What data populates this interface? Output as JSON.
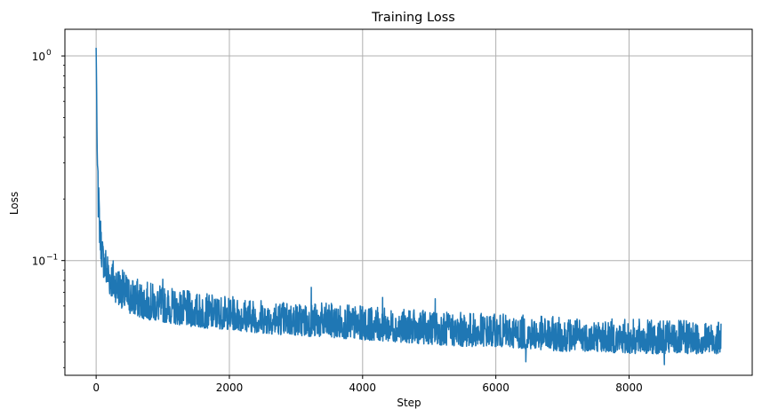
{
  "chart_data": {
    "type": "line",
    "title": "Training Loss",
    "xlabel": "Step",
    "ylabel": "Loss",
    "xlim": [
      -469,
      9849
    ],
    "ylim": [
      0.0275,
      1.35
    ],
    "yscale": "log",
    "grid": true,
    "legend": "none",
    "x_ticks": [
      0,
      2000,
      4000,
      6000,
      8000
    ],
    "x_tick_labels": [
      "0",
      "2000",
      "4000",
      "6000",
      "8000"
    ],
    "y_ticks": [
      1.0,
      0.1
    ],
    "y_tick_labels_base": [
      "10",
      "10"
    ],
    "y_tick_labels_exp": [
      "0",
      "−1"
    ],
    "y_minor_ticks": [
      0.03,
      0.04,
      0.05,
      0.06,
      0.07,
      0.08,
      0.09,
      0.2,
      0.3,
      0.4,
      0.5,
      0.6,
      0.7,
      0.8,
      0.9
    ],
    "series": [
      {
        "color": "#1f77b4",
        "x_max": 9380,
        "band_steps": [
          0,
          5,
          10,
          20,
          40,
          60,
          80,
          100,
          150,
          200,
          300,
          400,
          500,
          700,
          1000,
          1500,
          2000,
          2500,
          3000,
          3500,
          4000,
          4500,
          5000,
          5500,
          6000,
          6500,
          7000,
          7500,
          8000,
          8500,
          9000,
          9380
        ],
        "band_low": [
          1.05,
          0.6,
          0.35,
          0.2,
          0.14,
          0.11,
          0.095,
          0.085,
          0.075,
          0.068,
          0.062,
          0.058,
          0.055,
          0.052,
          0.05,
          0.047,
          0.046,
          0.044,
          0.043,
          0.042,
          0.041,
          0.04,
          0.039,
          0.038,
          0.038,
          0.037,
          0.036,
          0.036,
          0.035,
          0.035,
          0.035,
          0.035
        ],
        "band_high": [
          1.1,
          0.95,
          0.6,
          0.3,
          0.24,
          0.18,
          0.15,
          0.13,
          0.12,
          0.11,
          0.1,
          0.09,
          0.085,
          0.08,
          0.075,
          0.07,
          0.067,
          0.065,
          0.063,
          0.062,
          0.06,
          0.058,
          0.057,
          0.056,
          0.055,
          0.054,
          0.053,
          0.052,
          0.052,
          0.051,
          0.051,
          0.05
        ],
        "spikes": [
          {
            "x": 3230,
            "y": 0.074
          },
          {
            "x": 5090,
            "y": 0.065
          },
          {
            "x": 4300,
            "y": 0.066
          },
          {
            "x": 1000,
            "y": 0.081
          },
          {
            "x": 8530,
            "y": 0.031
          },
          {
            "x": 6450,
            "y": 0.032
          }
        ]
      }
    ]
  }
}
